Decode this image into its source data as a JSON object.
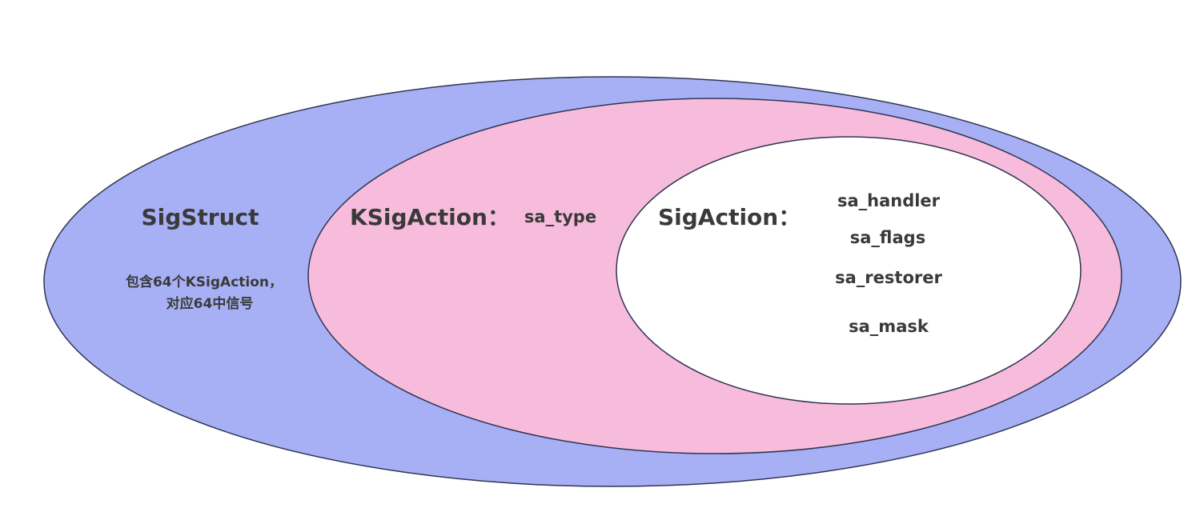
{
  "colors": {
    "outer_fill": "#a8b0f5",
    "middle_fill": "#f7bcdc",
    "inner_fill": "#ffffff",
    "stroke": "#2f3552",
    "text": "#3a3a3a"
  },
  "sigstruct": {
    "title": "SigStruct",
    "desc_line1": "包含64个KSigAction，",
    "desc_line2": "对应64中信号"
  },
  "ksigaction": {
    "title": "KSigAction：",
    "field": "sa_type"
  },
  "sigaction": {
    "title": "SigAction：",
    "fields": [
      "sa_handler",
      "sa_flags",
      "sa_restorer",
      "sa_mask"
    ]
  }
}
